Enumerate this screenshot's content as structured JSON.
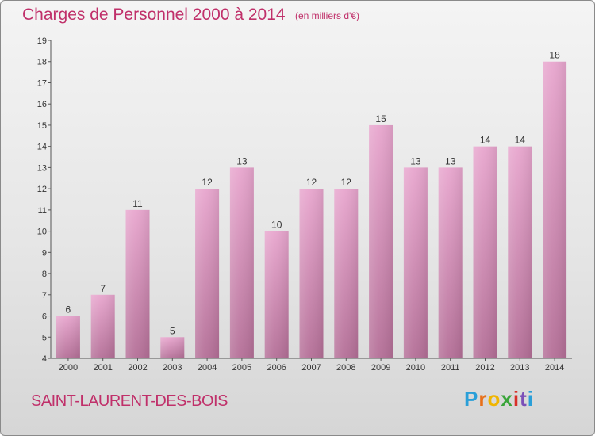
{
  "header": {
    "title": "Charges de Personnel 2000 à 2014",
    "subtitle": "(en milliers d'€)"
  },
  "footer": {
    "commune": "SAINT-LAURENT-DES-BOIS",
    "logo_letters": [
      "P",
      "r",
      "o",
      "x",
      "i",
      "t",
      "i"
    ]
  },
  "colors": {
    "bar_top": "#e8a6ce",
    "bar_bottom": "#b46f97",
    "text_accent": "#c0306a",
    "axis": "#555555"
  },
  "chart_data": {
    "type": "bar",
    "categories": [
      "2000",
      "2001",
      "2002",
      "2003",
      "2004",
      "2005",
      "2006",
      "2007",
      "2008",
      "2009",
      "2010",
      "2011",
      "2012",
      "2013",
      "2014"
    ],
    "values": [
      6,
      7,
      11,
      5,
      12,
      13,
      10,
      12,
      12,
      15,
      13,
      13,
      14,
      14,
      18
    ],
    "title": "Charges de Personnel 2000 à 2014",
    "subtitle": "(en milliers d'€)",
    "ylim": [
      4,
      19
    ],
    "yticks": [
      4,
      5,
      6,
      7,
      8,
      9,
      10,
      11,
      12,
      13,
      14,
      15,
      16,
      17,
      18,
      19
    ],
    "grid": false,
    "legend": "none"
  }
}
